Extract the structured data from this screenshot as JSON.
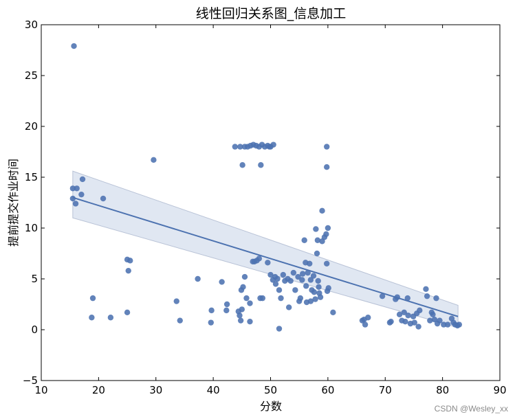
{
  "chart_data": {
    "type": "scatter",
    "title": "线性回归关系图_信息加工",
    "xlabel": "分数",
    "ylabel": "提前提交作业时间",
    "xlim": [
      10,
      90
    ],
    "ylim": [
      -5,
      30
    ],
    "xticks": [
      10,
      20,
      30,
      40,
      50,
      60,
      70,
      80,
      90
    ],
    "yticks": [
      -5,
      0,
      5,
      10,
      15,
      20,
      25,
      30
    ],
    "grid": false,
    "legend": null,
    "colors": {
      "points": "#4c72b0",
      "line": "#4c72b0",
      "band": "#c7d3e8"
    },
    "regression": {
      "x": [
        15.5,
        82.7
      ],
      "y": [
        13.0,
        1.3
      ],
      "ci_lower": [
        11.0,
        0.2
      ],
      "ci_upper": [
        15.6,
        2.4
      ]
    },
    "points": [
      [
        15.7,
        27.9
      ],
      [
        15.5,
        13.9
      ],
      [
        16.2,
        13.9
      ],
      [
        15.5,
        12.9
      ],
      [
        16.0,
        12.4
      ],
      [
        17.2,
        14.8
      ],
      [
        17.0,
        13.3
      ],
      [
        20.8,
        12.9
      ],
      [
        19.0,
        3.1
      ],
      [
        18.8,
        1.2
      ],
      [
        22.1,
        1.2
      ],
      [
        25.0,
        6.9
      ],
      [
        25.5,
        6.8
      ],
      [
        25.2,
        5.8
      ],
      [
        25.0,
        1.7
      ],
      [
        29.6,
        16.7
      ],
      [
        33.6,
        2.8
      ],
      [
        34.2,
        0.9
      ],
      [
        37.3,
        5.0
      ],
      [
        39.7,
        1.9
      ],
      [
        39.6,
        0.7
      ],
      [
        41.5,
        4.7
      ],
      [
        42.4,
        2.5
      ],
      [
        42.3,
        1.9
      ],
      [
        43.8,
        18.0
      ],
      [
        44.7,
        18.0
      ],
      [
        45.5,
        18.0
      ],
      [
        46.0,
        18.0
      ],
      [
        46.5,
        18.1
      ],
      [
        47.0,
        18.2
      ],
      [
        47.5,
        18.1
      ],
      [
        48.0,
        18.0
      ],
      [
        48.5,
        18.2
      ],
      [
        49.0,
        18.0
      ],
      [
        49.5,
        18.1
      ],
      [
        50.0,
        18.0
      ],
      [
        50.5,
        18.2
      ],
      [
        49.8,
        18.0
      ],
      [
        45.1,
        16.2
      ],
      [
        48.3,
        16.2
      ],
      [
        44.4,
        1.8
      ],
      [
        44.6,
        1.4
      ],
      [
        44.8,
        0.9
      ],
      [
        45.0,
        2.0
      ],
      [
        44.9,
        3.9
      ],
      [
        45.2,
        4.2
      ],
      [
        45.5,
        5.2
      ],
      [
        45.8,
        3.1
      ],
      [
        46.4,
        2.6
      ],
      [
        46.4,
        0.8
      ],
      [
        46.9,
        6.7
      ],
      [
        47.2,
        6.7
      ],
      [
        47.6,
        6.8
      ],
      [
        48.0,
        7.0
      ],
      [
        48.2,
        3.1
      ],
      [
        48.6,
        3.1
      ],
      [
        49.5,
        6.6
      ],
      [
        50.0,
        5.4
      ],
      [
        50.4,
        4.9
      ],
      [
        50.8,
        5.2
      ],
      [
        50.9,
        4.5
      ],
      [
        51.5,
        3.9
      ],
      [
        51.8,
        3.1
      ],
      [
        51.5,
        0.1
      ],
      [
        51.2,
        5.0
      ],
      [
        52.2,
        5.4
      ],
      [
        52.5,
        4.8
      ],
      [
        53.0,
        5.0
      ],
      [
        53.2,
        2.2
      ],
      [
        53.5,
        4.8
      ],
      [
        54.0,
        5.6
      ],
      [
        54.3,
        3.9
      ],
      [
        54.8,
        5.2
      ],
      [
        55.0,
        2.8
      ],
      [
        55.2,
        3.1
      ],
      [
        55.5,
        4.9
      ],
      [
        55.6,
        5.5
      ],
      [
        55.9,
        8.8
      ],
      [
        56.1,
        6.6
      ],
      [
        56.2,
        4.3
      ],
      [
        56.3,
        2.7
      ],
      [
        56.5,
        5.6
      ],
      [
        56.8,
        6.5
      ],
      [
        57.0,
        4.9
      ],
      [
        57.0,
        2.8
      ],
      [
        57.2,
        3.9
      ],
      [
        57.5,
        5.3
      ],
      [
        57.6,
        3.7
      ],
      [
        57.8,
        3.0
      ],
      [
        57.9,
        9.9
      ],
      [
        58.1,
        7.5
      ],
      [
        58.2,
        8.8
      ],
      [
        58.3,
        4.8
      ],
      [
        58.4,
        4.2
      ],
      [
        58.5,
        3.6
      ],
      [
        58.7,
        3.2
      ],
      [
        59.0,
        11.7
      ],
      [
        59.0,
        8.7
      ],
      [
        59.4,
        9.1
      ],
      [
        59.7,
        9.4
      ],
      [
        59.8,
        6.5
      ],
      [
        59.9,
        3.8
      ],
      [
        59.8,
        18.0
      ],
      [
        59.8,
        16.0
      ],
      [
        60.0,
        10.0
      ],
      [
        60.1,
        4.1
      ],
      [
        60.9,
        1.7
      ],
      [
        66.0,
        0.9
      ],
      [
        66.3,
        1.0
      ],
      [
        66.5,
        0.5
      ],
      [
        67.0,
        1.2
      ],
      [
        69.5,
        3.3
      ],
      [
        70.8,
        0.7
      ],
      [
        71.0,
        0.8
      ],
      [
        71.8,
        3.0
      ],
      [
        72.1,
        3.2
      ],
      [
        72.5,
        1.5
      ],
      [
        72.9,
        0.9
      ],
      [
        73.3,
        1.7
      ],
      [
        73.5,
        0.8
      ],
      [
        73.9,
        3.1
      ],
      [
        74.0,
        1.4
      ],
      [
        74.4,
        0.6
      ],
      [
        74.9,
        1.3
      ],
      [
        75.1,
        0.7
      ],
      [
        75.5,
        1.6
      ],
      [
        75.8,
        0.3
      ],
      [
        76.0,
        1.9
      ],
      [
        77.1,
        4.0
      ],
      [
        77.3,
        3.3
      ],
      [
        77.8,
        0.9
      ],
      [
        78.1,
        1.7
      ],
      [
        78.3,
        1.5
      ],
      [
        78.6,
        1.0
      ],
      [
        78.9,
        3.1
      ],
      [
        79.1,
        0.6
      ],
      [
        79.5,
        0.9
      ],
      [
        80.2,
        0.5
      ],
      [
        80.9,
        0.5
      ],
      [
        81.6,
        1.1
      ],
      [
        81.9,
        0.7
      ],
      [
        82.2,
        0.5
      ],
      [
        82.6,
        0.4
      ],
      [
        82.9,
        0.5
      ]
    ]
  },
  "watermark": "CSDN @Wesley_xx"
}
